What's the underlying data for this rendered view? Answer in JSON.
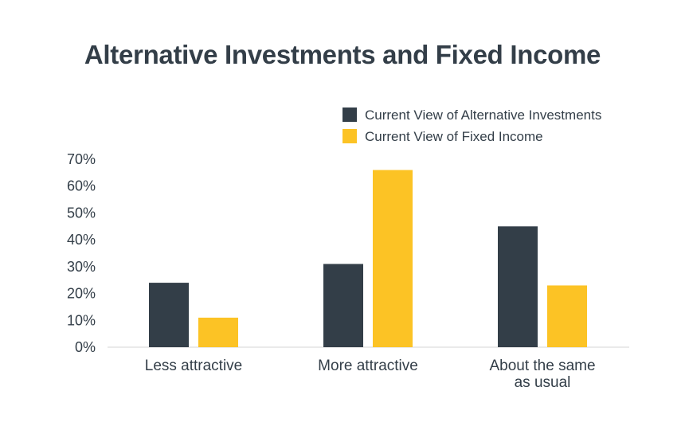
{
  "chart_data": {
    "type": "bar",
    "title": "Alternative Investments and Fixed Income",
    "categories": [
      [
        "Less attractive"
      ],
      [
        "More attractive"
      ],
      [
        "About the same",
        "as usual"
      ]
    ],
    "series": [
      {
        "name": "Current View of Alternative Investments",
        "color": "#333e48",
        "values": [
          24,
          31,
          45
        ]
      },
      {
        "name": "Current View of Fixed Income",
        "color": "#fcc325",
        "values": [
          11,
          66,
          23
        ]
      }
    ],
    "yticks": [
      "0%",
      "10%",
      "20%",
      "30%",
      "40%",
      "50%",
      "60%",
      "70%"
    ],
    "ylim": [
      0,
      70
    ],
    "legend_position": "top-right",
    "grid": false
  }
}
